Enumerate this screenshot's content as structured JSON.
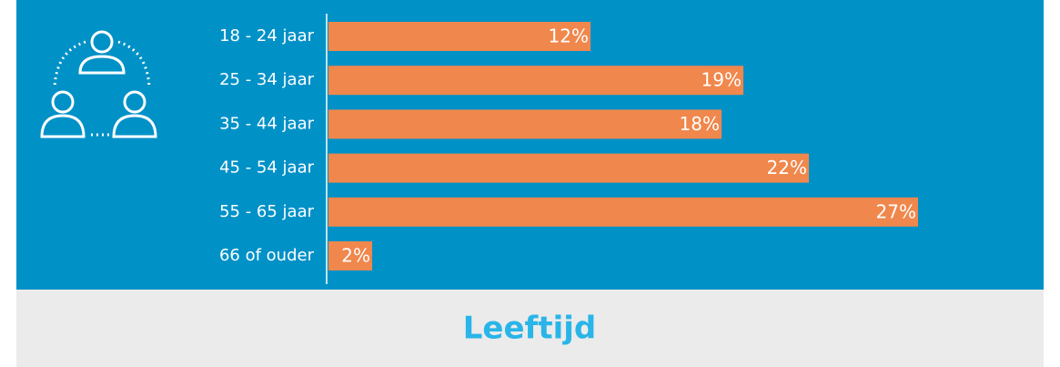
{
  "chart_data": {
    "type": "bar",
    "orientation": "horizontal",
    "title": "Leeftijd",
    "categories": [
      "18 - 24 jaar",
      "25 - 34 jaar",
      "35 - 44 jaar",
      "45 - 54 jaar",
      "55 - 65 jaar",
      "66 of ouder"
    ],
    "values": [
      12,
      19,
      18,
      22,
      27,
      2
    ],
    "value_labels": [
      "12%",
      "19%",
      "18%",
      "22%",
      "27%",
      "2%"
    ],
    "color": "#f0874c"
  }
}
